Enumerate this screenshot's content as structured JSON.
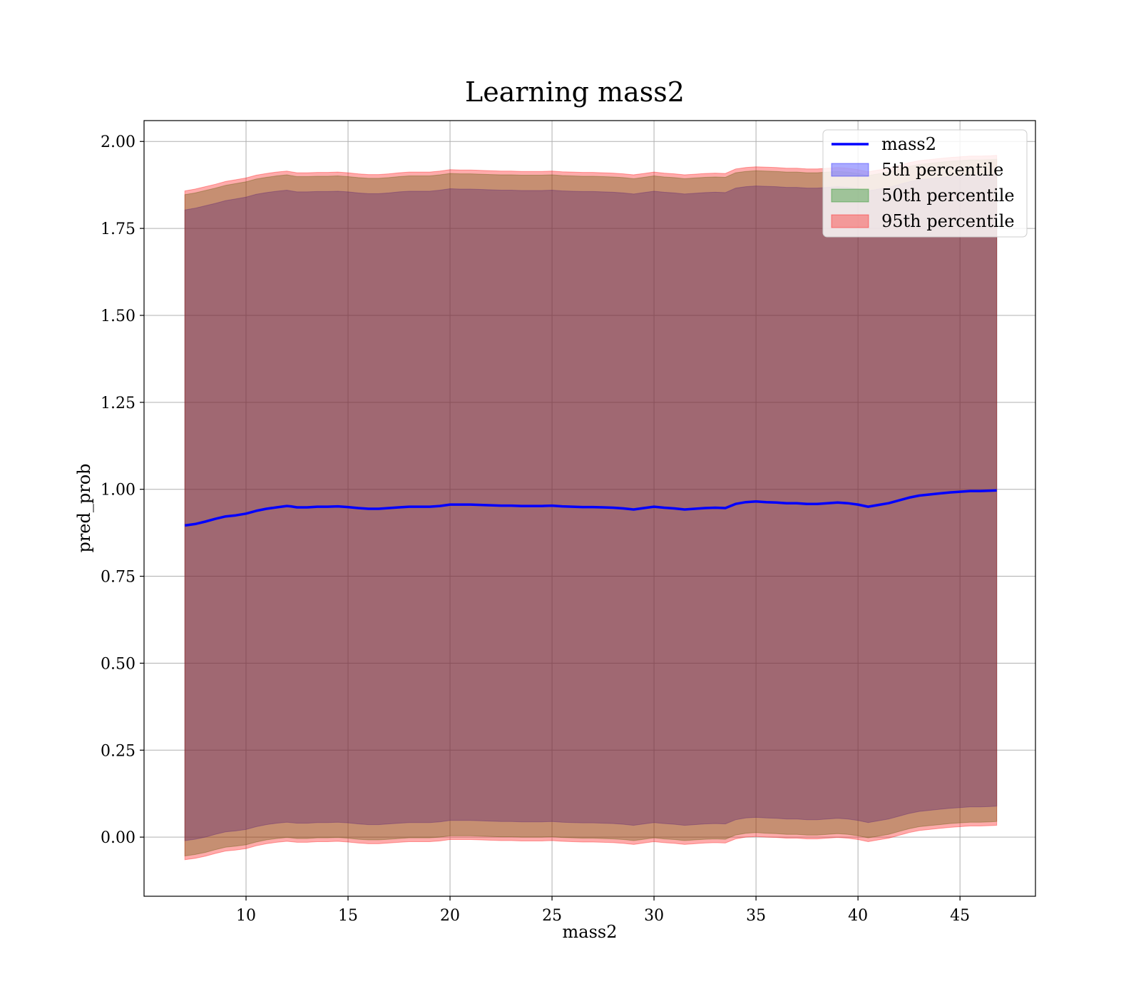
{
  "chart_data": {
    "type": "area",
    "title": "Learning mass2",
    "xlabel": "mass2",
    "ylabel": "pred_prob",
    "xlim": [
      5.0,
      48.7
    ],
    "ylim": [
      -0.17,
      2.06
    ],
    "xticks": [
      10,
      15,
      20,
      25,
      30,
      35,
      40,
      45
    ],
    "xtick_labels": [
      "10",
      "15",
      "20",
      "25",
      "30",
      "35",
      "40",
      "45"
    ],
    "yticks": [
      0.0,
      0.25,
      0.5,
      0.75,
      1.0,
      1.25,
      1.5,
      1.75,
      2.0
    ],
    "ytick_labels": [
      "0.00",
      "0.25",
      "0.50",
      "0.75",
      "1.00",
      "1.25",
      "1.50",
      "1.75",
      "2.00"
    ],
    "grid": true,
    "legend_position": "top-right",
    "x": [
      7.0,
      7.5,
      8.0,
      8.5,
      9.0,
      9.5,
      10.0,
      10.5,
      11.0,
      11.5,
      12.0,
      12.2,
      12.5,
      13.0,
      13.5,
      14.0,
      14.5,
      15.0,
      15.5,
      16.0,
      16.5,
      17.0,
      17.5,
      18.0,
      18.5,
      19.0,
      19.5,
      20.0,
      20.5,
      21.0,
      21.5,
      22.0,
      22.5,
      23.0,
      23.5,
      24.0,
      24.5,
      25.0,
      25.5,
      26.0,
      26.5,
      27.0,
      27.5,
      28.0,
      28.5,
      29.0,
      29.5,
      30.0,
      30.5,
      31.0,
      31.5,
      32.0,
      32.5,
      33.0,
      33.5,
      34.0,
      34.5,
      35.0,
      35.5,
      36.0,
      36.5,
      37.0,
      37.5,
      38.0,
      38.5,
      39.0,
      39.5,
      40.0,
      40.5,
      41.0,
      41.5,
      42.0,
      42.5,
      43.0,
      43.5,
      44.0,
      44.5,
      45.0,
      45.5,
      46.0,
      46.5,
      46.8
    ],
    "series": [
      {
        "name": "mass2",
        "kind": "line",
        "color": "#0000ff",
        "values": [
          0.896,
          0.9,
          0.907,
          0.915,
          0.922,
          0.925,
          0.93,
          0.938,
          0.944,
          0.948,
          0.952,
          0.951,
          0.948,
          0.948,
          0.95,
          0.95,
          0.951,
          0.949,
          0.946,
          0.944,
          0.944,
          0.946,
          0.948,
          0.95,
          0.95,
          0.95,
          0.952,
          0.956,
          0.956,
          0.956,
          0.955,
          0.954,
          0.953,
          0.953,
          0.952,
          0.952,
          0.952,
          0.953,
          0.951,
          0.95,
          0.949,
          0.949,
          0.948,
          0.947,
          0.945,
          0.942,
          0.946,
          0.95,
          0.947,
          0.945,
          0.942,
          0.944,
          0.946,
          0.947,
          0.946,
          0.958,
          0.963,
          0.965,
          0.963,
          0.962,
          0.96,
          0.96,
          0.958,
          0.958,
          0.96,
          0.962,
          0.96,
          0.956,
          0.95,
          0.955,
          0.96,
          0.968,
          0.976,
          0.982,
          0.985,
          0.988,
          0.991,
          0.993,
          0.995,
          0.995,
          0.996,
          0.997
        ]
      },
      {
        "name": "5th percentile",
        "kind": "band",
        "color": "#0000ff",
        "upper": [
          1.803,
          1.808,
          1.815,
          1.822,
          1.83,
          1.835,
          1.84,
          1.848,
          1.853,
          1.857,
          1.86,
          1.858,
          1.855,
          1.855,
          1.856,
          1.856,
          1.857,
          1.855,
          1.852,
          1.85,
          1.85,
          1.852,
          1.855,
          1.857,
          1.857,
          1.857,
          1.86,
          1.864,
          1.863,
          1.863,
          1.862,
          1.861,
          1.86,
          1.86,
          1.859,
          1.859,
          1.859,
          1.86,
          1.858,
          1.857,
          1.856,
          1.856,
          1.855,
          1.854,
          1.852,
          1.849,
          1.853,
          1.857,
          1.854,
          1.852,
          1.849,
          1.851,
          1.853,
          1.854,
          1.853,
          1.866,
          1.87,
          1.872,
          1.871,
          1.87,
          1.868,
          1.868,
          1.866,
          1.866,
          1.868,
          1.87,
          1.868,
          1.864,
          1.858,
          1.863,
          1.868,
          1.876,
          1.884,
          1.89,
          1.893,
          1.896,
          1.899,
          1.901,
          1.903,
          1.903,
          1.904,
          1.905
        ],
        "lower": [
          -0.01,
          -0.006,
          0.0,
          0.008,
          0.015,
          0.018,
          0.022,
          0.03,
          0.036,
          0.04,
          0.043,
          0.042,
          0.04,
          0.04,
          0.042,
          0.042,
          0.043,
          0.041,
          0.038,
          0.036,
          0.036,
          0.038,
          0.04,
          0.042,
          0.042,
          0.042,
          0.044,
          0.048,
          0.048,
          0.048,
          0.047,
          0.046,
          0.045,
          0.045,
          0.044,
          0.044,
          0.044,
          0.045,
          0.043,
          0.042,
          0.041,
          0.041,
          0.04,
          0.039,
          0.037,
          0.034,
          0.038,
          0.042,
          0.039,
          0.037,
          0.034,
          0.036,
          0.038,
          0.039,
          0.038,
          0.05,
          0.055,
          0.057,
          0.055,
          0.054,
          0.052,
          0.052,
          0.05,
          0.05,
          0.052,
          0.054,
          0.052,
          0.048,
          0.042,
          0.047,
          0.052,
          0.06,
          0.068,
          0.074,
          0.077,
          0.08,
          0.083,
          0.085,
          0.087,
          0.087,
          0.088,
          0.089
        ]
      },
      {
        "name": "50th percentile",
        "kind": "band",
        "color": "#008000",
        "upper": [
          1.847,
          1.852,
          1.859,
          1.866,
          1.874,
          1.879,
          1.884,
          1.892,
          1.897,
          1.901,
          1.904,
          1.902,
          1.899,
          1.899,
          1.9,
          1.9,
          1.901,
          1.899,
          1.896,
          1.894,
          1.894,
          1.896,
          1.899,
          1.901,
          1.901,
          1.901,
          1.904,
          1.908,
          1.907,
          1.907,
          1.906,
          1.905,
          1.904,
          1.904,
          1.903,
          1.903,
          1.903,
          1.904,
          1.902,
          1.901,
          1.9,
          1.9,
          1.899,
          1.898,
          1.896,
          1.893,
          1.897,
          1.901,
          1.898,
          1.896,
          1.893,
          1.895,
          1.897,
          1.898,
          1.897,
          1.91,
          1.914,
          1.916,
          1.915,
          1.914,
          1.912,
          1.912,
          1.91,
          1.91,
          1.912,
          1.914,
          1.912,
          1.908,
          1.902,
          1.907,
          1.912,
          1.92,
          1.928,
          1.934,
          1.937,
          1.94,
          1.943,
          1.945,
          1.947,
          1.947,
          1.948,
          1.949
        ],
        "lower": [
          -0.054,
          -0.05,
          -0.044,
          -0.036,
          -0.029,
          -0.026,
          -0.022,
          -0.014,
          -0.008,
          -0.004,
          -0.001,
          -0.002,
          -0.004,
          -0.004,
          -0.002,
          -0.002,
          -0.001,
          -0.003,
          -0.006,
          -0.008,
          -0.008,
          -0.006,
          -0.004,
          -0.002,
          -0.002,
          -0.002,
          0.0,
          0.004,
          0.004,
          0.004,
          0.003,
          0.002,
          0.001,
          0.001,
          0.0,
          0.0,
          0.0,
          0.001,
          -0.001,
          -0.002,
          -0.003,
          -0.003,
          -0.004,
          -0.005,
          -0.007,
          -0.01,
          -0.006,
          -0.002,
          -0.005,
          -0.007,
          -0.01,
          -0.008,
          -0.006,
          -0.005,
          -0.006,
          0.006,
          0.011,
          0.013,
          0.011,
          0.01,
          0.008,
          0.008,
          0.006,
          0.006,
          0.008,
          0.01,
          0.008,
          0.004,
          -0.002,
          0.003,
          0.008,
          0.016,
          0.024,
          0.03,
          0.033,
          0.036,
          0.039,
          0.041,
          0.043,
          0.043,
          0.044,
          0.045
        ]
      },
      {
        "name": "95th percentile",
        "kind": "band",
        "color": "#ff0000",
        "upper": [
          1.858,
          1.863,
          1.87,
          1.877,
          1.885,
          1.89,
          1.895,
          1.903,
          1.908,
          1.912,
          1.915,
          1.913,
          1.91,
          1.91,
          1.911,
          1.911,
          1.912,
          1.91,
          1.907,
          1.905,
          1.905,
          1.907,
          1.91,
          1.912,
          1.912,
          1.912,
          1.915,
          1.919,
          1.918,
          1.918,
          1.917,
          1.916,
          1.915,
          1.915,
          1.914,
          1.914,
          1.914,
          1.915,
          1.913,
          1.912,
          1.911,
          1.911,
          1.91,
          1.909,
          1.907,
          1.904,
          1.908,
          1.912,
          1.909,
          1.907,
          1.904,
          1.906,
          1.908,
          1.909,
          1.908,
          1.921,
          1.925,
          1.927,
          1.926,
          1.925,
          1.923,
          1.923,
          1.921,
          1.921,
          1.923,
          1.925,
          1.923,
          1.919,
          1.913,
          1.918,
          1.923,
          1.931,
          1.939,
          1.945,
          1.948,
          1.951,
          1.954,
          1.956,
          1.958,
          1.958,
          1.959,
          1.96
        ],
        "lower": [
          -0.065,
          -0.061,
          -0.055,
          -0.047,
          -0.04,
          -0.037,
          -0.033,
          -0.025,
          -0.019,
          -0.015,
          -0.012,
          -0.013,
          -0.015,
          -0.015,
          -0.013,
          -0.013,
          -0.012,
          -0.014,
          -0.017,
          -0.019,
          -0.019,
          -0.017,
          -0.015,
          -0.013,
          -0.013,
          -0.013,
          -0.011,
          -0.007,
          -0.007,
          -0.007,
          -0.008,
          -0.009,
          -0.01,
          -0.01,
          -0.011,
          -0.011,
          -0.011,
          -0.01,
          -0.012,
          -0.013,
          -0.014,
          -0.014,
          -0.015,
          -0.016,
          -0.018,
          -0.021,
          -0.017,
          -0.013,
          -0.016,
          -0.018,
          -0.021,
          -0.019,
          -0.017,
          -0.016,
          -0.017,
          -0.005,
          0.0,
          0.002,
          0.0,
          -0.001,
          -0.003,
          -0.003,
          -0.005,
          -0.005,
          -0.003,
          -0.001,
          -0.003,
          -0.007,
          -0.013,
          -0.008,
          -0.003,
          0.005,
          0.013,
          0.019,
          0.022,
          0.025,
          0.028,
          0.03,
          0.032,
          0.032,
          0.033,
          0.034
        ]
      }
    ]
  }
}
